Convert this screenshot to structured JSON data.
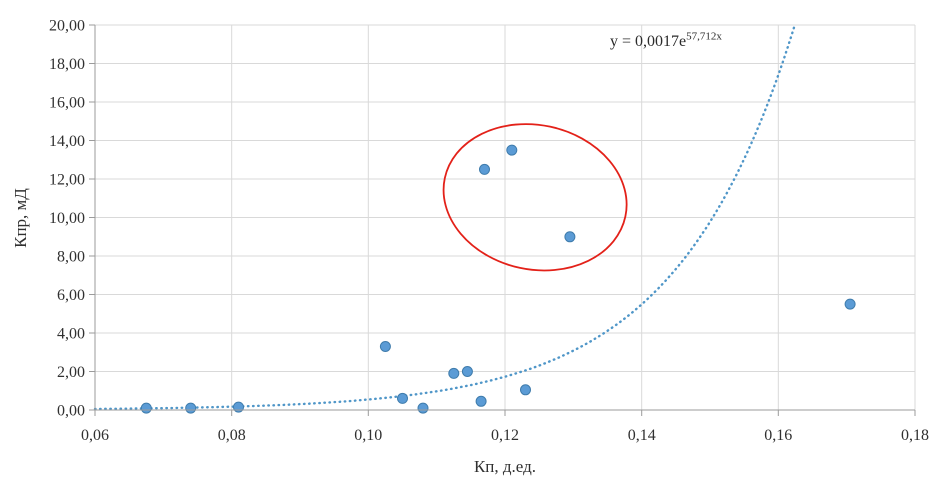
{
  "chart_data": {
    "type": "scatter",
    "title": "",
    "xlabel": "Кп, д.ед.",
    "ylabel": "Кпр, мД",
    "xlim": [
      0.06,
      0.18
    ],
    "ylim": [
      0,
      20
    ],
    "grid": true,
    "legend": false,
    "x_ticks": [
      0.06,
      0.08,
      0.1,
      0.12,
      0.14,
      0.16,
      0.18
    ],
    "x_tick_labels": [
      "0,06",
      "0,08",
      "0,10",
      "0,12",
      "0,14",
      "0,16",
      "0,18"
    ],
    "y_ticks": [
      0,
      2,
      4,
      6,
      8,
      10,
      12,
      14,
      16,
      18,
      20
    ],
    "y_tick_labels": [
      "0,00",
      "2,00",
      "4,00",
      "6,00",
      "8,00",
      "10,00",
      "12,00",
      "14,00",
      "16,00",
      "18,00",
      "20,00"
    ],
    "points": [
      [
        0.0675,
        0.1
      ],
      [
        0.074,
        0.1
      ],
      [
        0.081,
        0.15
      ],
      [
        0.1025,
        3.3
      ],
      [
        0.105,
        0.6
      ],
      [
        0.108,
        0.1
      ],
      [
        0.1125,
        1.9
      ],
      [
        0.1145,
        2.0
      ],
      [
        0.117,
        12.5
      ],
      [
        0.1165,
        0.45
      ],
      [
        0.121,
        13.5
      ],
      [
        0.123,
        1.05
      ],
      [
        0.1295,
        9.0
      ],
      [
        0.1705,
        5.5
      ]
    ],
    "trendline": {
      "type": "exponential",
      "a": 0.0017,
      "b": 57.712,
      "equation_base": "y = 0,0017e",
      "equation_exponent": "57,712x",
      "style": "dotted"
    },
    "annotations": {
      "ellipse": {
        "cx": 0.1244,
        "cy": 11.05,
        "rx": 0.0135,
        "ry": 3.75,
        "rotation_deg": 12,
        "meaning": "highlighted-outlier-group"
      }
    },
    "colors": {
      "point_fill": "#5b9bd5",
      "point_stroke": "#3f7cac",
      "trendline": "#4f96c8",
      "ellipse": "#e32119",
      "grid": "#d9d9d9",
      "axis": "#9b9b9b",
      "text": "#303030"
    }
  }
}
